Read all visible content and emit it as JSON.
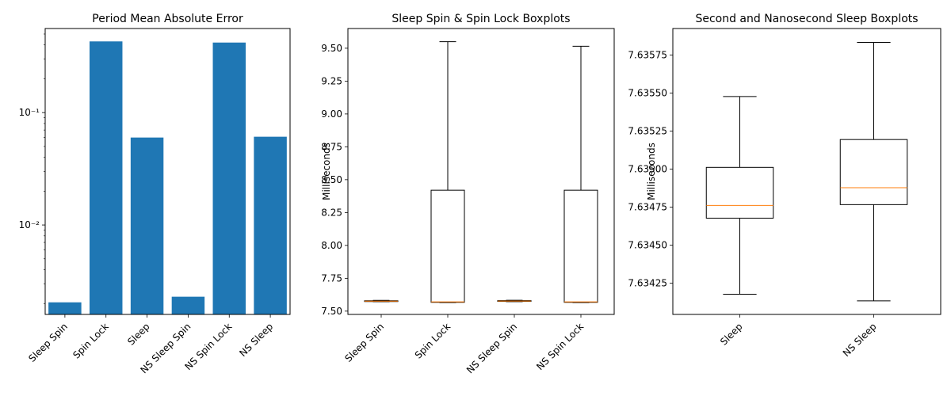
{
  "colors": {
    "bar": "#1f77b4",
    "median": "#ff7f0e",
    "box": "#000000"
  },
  "chart_data": [
    {
      "type": "bar",
      "title": "Period Mean Absolute Error",
      "xlabel": "",
      "ylabel": "",
      "yscale": "log",
      "ylim": [
        0.0016,
        0.56
      ],
      "categories": [
        "Sleep Spin",
        "Spin Lock",
        "Sleep",
        "NS Sleep Spin",
        "NS Spin Lock",
        "NS Sleep"
      ],
      "values": [
        0.00205,
        0.43,
        0.06,
        0.0023,
        0.42,
        0.061
      ],
      "yticks": [
        {
          "value": 0.1,
          "label": "10⁻¹"
        },
        {
          "value": 0.01,
          "label": "10⁻²"
        }
      ]
    },
    {
      "type": "boxplot",
      "title": "Sleep Spin & Spin Lock Boxplots",
      "xlabel": "",
      "ylabel": "Milliseconds",
      "ylim": [
        7.475,
        9.65
      ],
      "categories": [
        "Sleep Spin",
        "Spin Lock",
        "NS Sleep Spin",
        "NS Spin Lock"
      ],
      "boxes": [
        {
          "whislo": 7.572,
          "q1": 7.574,
          "med": 7.576,
          "q3": 7.579,
          "whishi": 7.582
        },
        {
          "whislo": 7.565,
          "q1": 7.567,
          "med": 7.571,
          "q3": 8.42,
          "whishi": 9.55
        },
        {
          "whislo": 7.572,
          "q1": 7.574,
          "med": 7.577,
          "q3": 7.58,
          "whishi": 7.583
        },
        {
          "whislo": 7.565,
          "q1": 7.567,
          "med": 7.571,
          "q3": 8.42,
          "whishi": 9.515
        }
      ],
      "yticks": [
        {
          "value": 7.5,
          "label": "7.50"
        },
        {
          "value": 7.75,
          "label": "7.75"
        },
        {
          "value": 8.0,
          "label": "8.00"
        },
        {
          "value": 8.25,
          "label": "8.25"
        },
        {
          "value": 8.5,
          "label": "8.50"
        },
        {
          "value": 8.75,
          "label": "8.75"
        },
        {
          "value": 9.0,
          "label": "9.00"
        },
        {
          "value": 9.25,
          "label": "9.25"
        },
        {
          "value": 9.5,
          "label": "9.50"
        }
      ]
    },
    {
      "type": "boxplot",
      "title": "Second and Nanosecond Sleep Boxplots",
      "xlabel": "",
      "ylabel": "Milliseconds",
      "ylim": [
        7.634045,
        7.635925
      ],
      "categories": [
        "Sleep",
        "NS Sleep"
      ],
      "boxes": [
        {
          "whislo": 7.634178,
          "q1": 7.634678,
          "med": 7.634762,
          "q3": 7.635012,
          "whishi": 7.635478
        },
        {
          "whislo": 7.634134,
          "q1": 7.634767,
          "med": 7.634878,
          "q3": 7.635195,
          "whishi": 7.635834
        }
      ],
      "yticks": [
        {
          "value": 7.63425,
          "label": "7.63425"
        },
        {
          "value": 7.6345,
          "label": "7.63450"
        },
        {
          "value": 7.63475,
          "label": "7.63475"
        },
        {
          "value": 7.635,
          "label": "7.63500"
        },
        {
          "value": 7.63525,
          "label": "7.63525"
        },
        {
          "value": 7.6355,
          "label": "7.63550"
        },
        {
          "value": 7.63575,
          "label": "7.63575"
        }
      ]
    }
  ]
}
